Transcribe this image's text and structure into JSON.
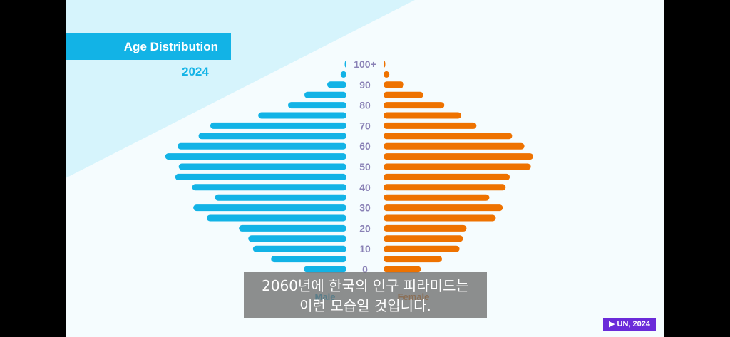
{
  "title": "Age Distribution",
  "year": "2024",
  "source_badge": "▶ UN, 2024",
  "subtitle": {
    "line1": "2060년에 한국의 인구 피라미드는",
    "line2": "이런 모습일 것입니다."
  },
  "colors": {
    "male": "#12b3e6",
    "female": "#ee7200",
    "age_label": "#8a82b6",
    "background": "#f5fcfe"
  },
  "chart_data": {
    "type": "bar",
    "orientation": "horizontal-pyramid",
    "age_tick_labels": [
      "100+",
      "90",
      "80",
      "70",
      "60",
      "50",
      "40",
      "30",
      "20",
      "10",
      "0"
    ],
    "series": [
      {
        "name": "Male",
        "values": [
          0.3,
          1.0,
          3.3,
          7.2,
          10.0,
          15.1,
          23.3,
          25.3,
          28.9,
          31.0,
          28.7,
          29.3,
          26.4,
          22.5,
          26.2,
          23.9,
          18.4,
          16.8,
          16.0,
          12.9,
          7.3
        ]
      },
      {
        "name": "Female",
        "values": [
          0.3,
          1.0,
          3.5,
          6.8,
          10.4,
          13.3,
          15.9,
          22.0,
          24.1,
          25.6,
          25.2,
          21.6,
          20.9,
          18.1,
          20.4,
          19.2,
          14.2,
          13.6,
          13.0,
          10.0,
          6.4
        ]
      }
    ],
    "legend": [
      "Male",
      "Female"
    ]
  }
}
